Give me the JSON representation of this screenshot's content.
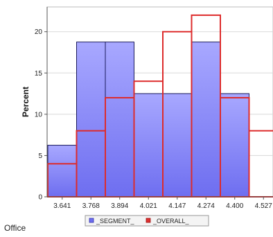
{
  "footer_label": "Office",
  "chart_data": {
    "type": "bar",
    "categories": [
      "3.641",
      "3.768",
      "3.894",
      "4.021",
      "4.147",
      "4.274",
      "4.400",
      "4.527"
    ],
    "series": [
      {
        "name": "_SEGMENT_",
        "values": [
          6.25,
          18.75,
          18.75,
          12.5,
          12.5,
          18.75,
          12.5,
          0
        ],
        "color": "#8080ff"
      },
      {
        "name": "_OVERALL_",
        "values": [
          4,
          8,
          12,
          14,
          20,
          22,
          12,
          8
        ],
        "color": "#e03030"
      }
    ],
    "xlabel": "",
    "ylabel": "Percent",
    "ylim": [
      0,
      23
    ],
    "yticks": [
      0,
      5,
      10,
      15,
      20
    ],
    "grid": true,
    "legend": "bottom"
  }
}
